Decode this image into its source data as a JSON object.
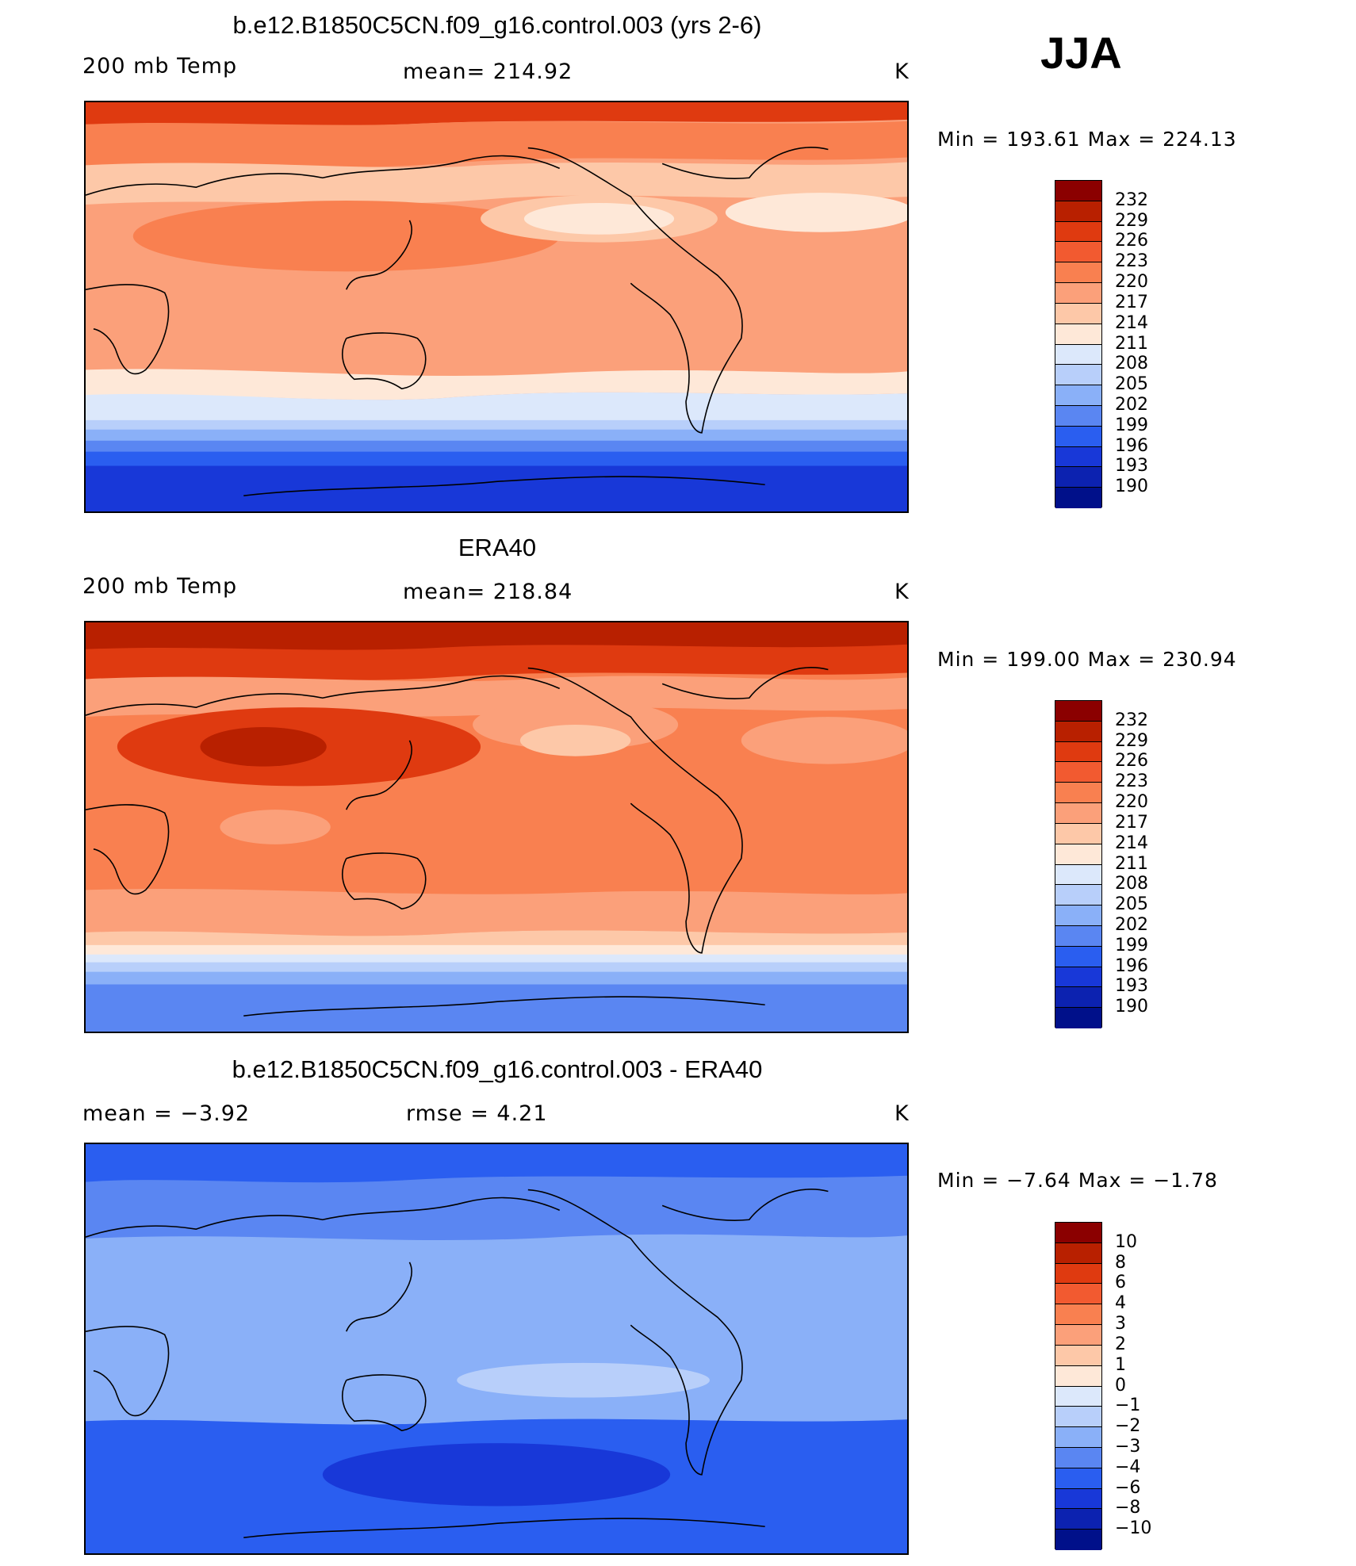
{
  "season": "JJA",
  "panels": [
    {
      "title": "b.e12.B1850C5CN.f09_g16.control.003 (yrs 2-6)",
      "left_text": "200 mb Temp",
      "center_text": "mean= 214.92",
      "units": "K",
      "minmax": "Min = 193.61 Max = 224.13",
      "colorbar_labels": [
        "232",
        "229",
        "226",
        "223",
        "220",
        "217",
        "214",
        "211",
        "208",
        "205",
        "202",
        "199",
        "196",
        "193",
        "190"
      ],
      "colorbar_colors": [
        "#8b0000",
        "#b82000",
        "#df3a10",
        "#f25a30",
        "#f98050",
        "#fba07a",
        "#fdc8a8",
        "#fee8d8",
        "#dce8fb",
        "#b8cffa",
        "#8ab0f8",
        "#5a86f2",
        "#2a5ef0",
        "#1838d8",
        "#0c22b0",
        "#00108a"
      ]
    },
    {
      "title": "ERA40",
      "left_text": "200 mb Temp",
      "center_text": "mean= 218.84",
      "units": "K",
      "minmax": "Min = 199.00 Max = 230.94",
      "colorbar_labels": [
        "232",
        "229",
        "226",
        "223",
        "220",
        "217",
        "214",
        "211",
        "208",
        "205",
        "202",
        "199",
        "196",
        "193",
        "190"
      ],
      "colorbar_colors": [
        "#8b0000",
        "#b82000",
        "#df3a10",
        "#f25a30",
        "#f98050",
        "#fba07a",
        "#fdc8a8",
        "#fee8d8",
        "#dce8fb",
        "#b8cffa",
        "#8ab0f8",
        "#5a86f2",
        "#2a5ef0",
        "#1838d8",
        "#0c22b0",
        "#00108a"
      ]
    },
    {
      "title": "b.e12.B1850C5CN.f09_g16.control.003 - ERA40",
      "left_text": "mean = −3.92",
      "center_text": "rmse = 4.21",
      "units": "K",
      "minmax": "Min = −7.64 Max = −1.78",
      "colorbar_labels": [
        "10",
        "8",
        "6",
        "4",
        "3",
        "2",
        "1",
        "0",
        "−1",
        "−2",
        "−3",
        "−4",
        "−6",
        "−8",
        "−10"
      ],
      "colorbar_colors": [
        "#8b0000",
        "#b82000",
        "#df3a10",
        "#f25a30",
        "#f98050",
        "#fba07a",
        "#fdc8a8",
        "#fee8d8",
        "#dce8fb",
        "#b8cffa",
        "#8ab0f8",
        "#5a86f2",
        "#2a5ef0",
        "#1838d8",
        "#0c22b0",
        "#00108a"
      ]
    }
  ]
}
